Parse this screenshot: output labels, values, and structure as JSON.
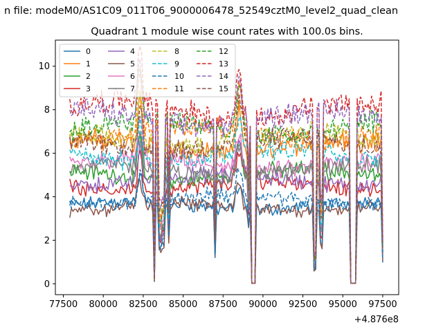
{
  "suptitle": "n file: modeM0/AS1C09_011T06_9000006478_52549cztM0_level2_quad_clean",
  "chart_data": {
    "type": "line",
    "title": "Quadrant 1 module wise count rates with 100.0s bins.",
    "xlabel": "",
    "ylabel": "",
    "x_offset_label": "+4.876e8",
    "xlim": [
      77000,
      98500
    ],
    "ylim": [
      -0.5,
      11.2
    ],
    "x_range": [
      77900,
      97550
    ],
    "x_ticks": [
      77500,
      80000,
      82500,
      85000,
      87500,
      90000,
      92500,
      95000,
      97500
    ],
    "x_tick_labels": [
      "77500",
      "80000",
      "82500",
      "85000",
      "87500",
      "90000",
      "92500",
      "95000",
      "97500"
    ],
    "y_ticks": [
      0,
      2,
      4,
      6,
      8,
      10
    ],
    "y_tick_labels": [
      "0",
      "2",
      "4",
      "6",
      "8",
      "10"
    ],
    "grid": false,
    "legend_position": "top-left",
    "legend_columns": 4,
    "dips": [
      {
        "x": 83200,
        "depth": 0.03
      },
      {
        "x": 83550,
        "depth": 0.45
      },
      {
        "x": 83750,
        "depth": 0.5
      },
      {
        "x": 84100,
        "depth": 0.55
      },
      {
        "x": 87000,
        "depth": 0.35
      },
      {
        "x": 89100,
        "depth": 0.7
      },
      {
        "x": 93250,
        "depth": 0.18
      },
      {
        "x": 93650,
        "depth": 0.5
      },
      {
        "x": 97550,
        "depth": 0.28
      }
    ],
    "gaps": [
      [
        89300,
        89550
      ],
      [
        95450,
        95800
      ]
    ],
    "series": [
      {
        "name": "0",
        "color": "#1f77b4",
        "dash": false,
        "level": 3.6
      },
      {
        "name": "1",
        "color": "#ff7f0e",
        "dash": false,
        "level": 6.3
      },
      {
        "name": "2",
        "color": "#2ca02c",
        "dash": false,
        "level": 5.0
      },
      {
        "name": "3",
        "color": "#d62728",
        "dash": false,
        "level": 4.5
      },
      {
        "name": "4",
        "color": "#9467bd",
        "dash": false,
        "level": 4.8
      },
      {
        "name": "5",
        "color": "#8c564b",
        "dash": false,
        "level": 3.5
      },
      {
        "name": "6",
        "color": "#e377c2",
        "dash": false,
        "level": 5.5
      },
      {
        "name": "7",
        "color": "#7f7f7f",
        "dash": false,
        "level": 5.2
      },
      {
        "name": "8",
        "color": "#bcbd22",
        "dash": true,
        "level": 6.6
      },
      {
        "name": "9",
        "color": "#17becf",
        "dash": true,
        "level": 5.9
      },
      {
        "name": "10",
        "color": "#1f77b4",
        "dash": true,
        "level": 3.9
      },
      {
        "name": "11",
        "color": "#ff7f0e",
        "dash": true,
        "level": 6.9
      },
      {
        "name": "12",
        "color": "#2ca02c",
        "dash": true,
        "level": 7.2
      },
      {
        "name": "13",
        "color": "#d62728",
        "dash": true,
        "level": 8.0
      },
      {
        "name": "14",
        "color": "#9467bd",
        "dash": true,
        "level": 7.6
      },
      {
        "name": "15",
        "color": "#8c564b",
        "dash": true,
        "level": 6.4
      }
    ]
  }
}
